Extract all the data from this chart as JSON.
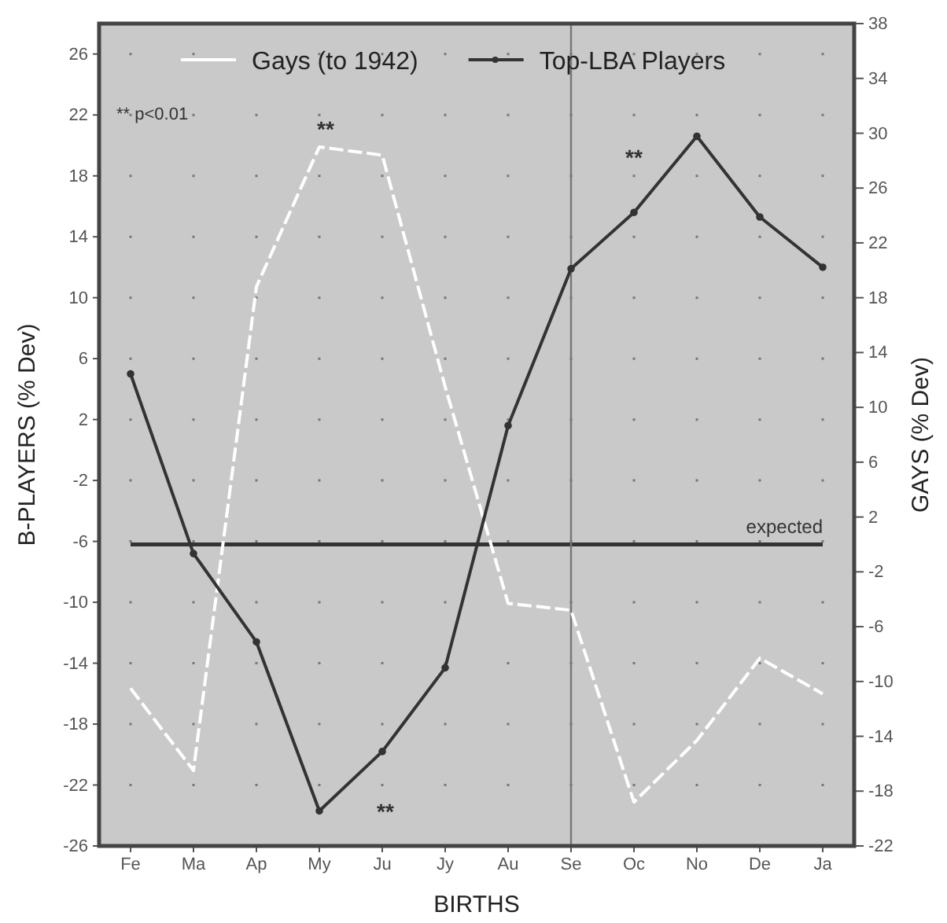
{
  "chart_data": {
    "type": "line",
    "xlabel": "BIRTHS",
    "ylabel": "B-PLAYERS (% Dev)",
    "y2label": "GAYS (% Dev)",
    "categories": [
      "Fe",
      "Ma",
      "Ap",
      "My",
      "Ju",
      "Jy",
      "Au",
      "Se",
      "Oc",
      "No",
      "De",
      "Ja"
    ],
    "series": [
      {
        "name": "Gays (to 1942)",
        "color": "#ffffff",
        "axis": "y2",
        "line_style": "dashed",
        "marker": "none",
        "values": [
          -10.5,
          -16.5,
          18.8,
          29.0,
          28.4,
          11.5,
          -4.3,
          -4.8,
          -18.8,
          -14.3,
          -8.3,
          -10.9
        ]
      },
      {
        "name": "Top-LBA Players",
        "color": "#333333",
        "axis": "y",
        "line_style": "solid",
        "marker": "circle",
        "values": [
          5.0,
          -6.8,
          -12.6,
          -23.7,
          -19.8,
          -14.3,
          1.6,
          11.9,
          15.6,
          20.6,
          15.3,
          12.0
        ]
      }
    ],
    "ylim": [
      -26,
      28
    ],
    "yticks": [
      -26,
      -22,
      -18,
      -14,
      -10,
      -6,
      -2,
      2,
      6,
      10,
      14,
      18,
      22,
      26
    ],
    "y2lim": [
      -22,
      38
    ],
    "y2ticks": [
      -22,
      -18,
      -14,
      -10,
      -6,
      -2,
      2,
      6,
      10,
      14,
      18,
      22,
      26,
      30,
      34,
      38
    ],
    "ref_lines": [
      {
        "axis": "y2",
        "value": 0,
        "label": "expected",
        "color": "#333333"
      },
      {
        "axis": "x",
        "value": "Se",
        "color": "#777777"
      }
    ],
    "annotations": [
      "** p<0.01",
      "**",
      "**",
      "**"
    ],
    "grid": true,
    "legend": "top"
  }
}
